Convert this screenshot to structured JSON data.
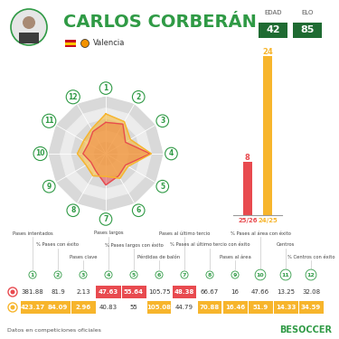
{
  "header": {
    "name": "CARLOS CORBERÁN",
    "team": "Valencia",
    "stats": [
      {
        "label": "EDAD",
        "value": 42
      },
      {
        "label": "ELO",
        "value": 85
      }
    ]
  },
  "chart_data": [
    {
      "type": "radar",
      "categories": [
        "1",
        "2",
        "3",
        "4",
        "5",
        "6",
        "7",
        "8",
        "9",
        "10",
        "11",
        "12"
      ],
      "series": [
        {
          "name": "25/26",
          "color": "#e84a4f",
          "values": [
            55,
            60,
            40,
            78,
            40,
            45,
            55,
            35,
            30,
            40,
            35,
            45
          ]
        },
        {
          "name": "24/25",
          "color": "#f7b52c",
          "values": [
            70,
            65,
            50,
            80,
            45,
            50,
            40,
            45,
            40,
            50,
            45,
            50
          ]
        }
      ],
      "ylim": [
        0,
        100
      ],
      "yticks": [
        20,
        40,
        60,
        80,
        100
      ],
      "grid": true,
      "tick_labels": "x"
    },
    {
      "type": "bar",
      "categories": [
        "25/26",
        "24/25"
      ],
      "values": [
        8,
        24
      ],
      "colors": [
        "#e84a4f",
        "#f7b52c"
      ],
      "ylim": [
        0,
        24
      ],
      "data_labels": true,
      "tick_labels": "x"
    }
  ],
  "table": {
    "columns": [
      {
        "number": "1",
        "label": "Pases intentados"
      },
      {
        "number": "2",
        "label": "% Pases con éxito"
      },
      {
        "number": "3",
        "label": "Pases clave"
      },
      {
        "number": "4",
        "label": "Pases largos"
      },
      {
        "number": "5",
        "label": "% Pases largos con éxito"
      },
      {
        "number": "6",
        "label": "Pérdidas de balón"
      },
      {
        "number": "7",
        "label": "Pases al último tercio"
      },
      {
        "number": "8",
        "label": "% Pases al último tercio con éxito"
      },
      {
        "number": "9",
        "label": "Pases al área"
      },
      {
        "number": "10",
        "label": "% Pases al área con éxito"
      },
      {
        "number": "11",
        "label": "Centros"
      },
      {
        "number": "12",
        "label": "% Centros con éxito"
      }
    ],
    "rows": [
      {
        "season": "25/26",
        "values": [
          381.88,
          81.9,
          2.13,
          47.63,
          55.64,
          105.75,
          48.38,
          66.67,
          16,
          47.66,
          13.25,
          32.08
        ],
        "highlighted": [
          false,
          false,
          false,
          true,
          true,
          false,
          true,
          false,
          false,
          false,
          false,
          false
        ]
      },
      {
        "season": "24/25",
        "values": [
          423.17,
          84.09,
          2.96,
          40.83,
          55,
          105.08,
          44.79,
          70.88,
          16.46,
          51.9,
          14.33,
          34.59
        ],
        "highlighted": [
          true,
          true,
          true,
          false,
          false,
          true,
          false,
          true,
          true,
          true,
          true,
          true
        ]
      }
    ]
  },
  "footer": {
    "note": "Datos en competiciones oficiales",
    "brand": "BESOCCER"
  }
}
